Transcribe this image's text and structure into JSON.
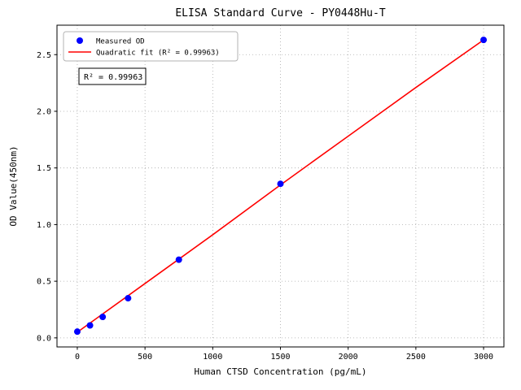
{
  "figure": {
    "title": "ELISA Standard Curve - PY0448Hu-T",
    "annotation": "R² = 0.99963"
  },
  "chart_data": {
    "type": "scatter",
    "title": "ELISA Standard Curve - PY0448Hu-T",
    "xlabel": "Human CTSD Concentration (pg/mL)",
    "ylabel": "OD Value(450nm)",
    "xlim": [
      -150,
      3150
    ],
    "ylim": [
      -0.08,
      2.76
    ],
    "xticks": [
      0,
      500,
      1000,
      1500,
      2000,
      2500,
      3000
    ],
    "yticks": [
      0.0,
      0.5,
      1.0,
      1.5,
      2.0,
      2.5
    ],
    "grid": true,
    "grid_style": "dotted",
    "legend_position": "upper-left",
    "annotation": "R² = 0.99963",
    "colors": {
      "scatter": "#0000ff",
      "fit_line": "#ff0000",
      "grid": "#aaaaaa",
      "axes": "#000000",
      "legend_border": "#b3b3b3",
      "annotation_border": "#000000"
    },
    "series": [
      {
        "name": "Measured OD",
        "type": "scatter",
        "color": "#0000ff",
        "x": [
          0,
          93.75,
          187.5,
          375,
          750,
          1500,
          3000
        ],
        "y": [
          0.055,
          0.11,
          0.185,
          0.35,
          0.69,
          1.36,
          2.63
        ]
      },
      {
        "name": "Quadratic fit (R² = 0.99963)",
        "type": "line",
        "color": "#ff0000",
        "x": [
          0,
          500,
          1000,
          1500,
          2000,
          2500,
          3000
        ],
        "y": [
          0.05,
          0.48,
          0.91,
          1.35,
          1.78,
          2.21,
          2.63
        ]
      }
    ]
  }
}
